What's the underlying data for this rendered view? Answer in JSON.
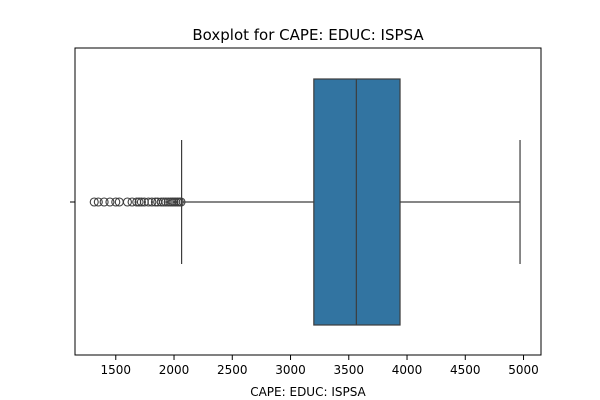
{
  "chart_data": {
    "type": "box",
    "title": "Boxplot for CAPE: EDUC: ISPSA",
    "xlabel": "CAPE: EDUC: ISPSA",
    "ylabel": "",
    "xlim": [
      1150,
      5150
    ],
    "xticks": [
      1500,
      2000,
      2500,
      3000,
      3500,
      4000,
      4500,
      5000
    ],
    "xtick_labels": [
      "1500",
      "2000",
      "2500",
      "3000",
      "3500",
      "4000",
      "4500",
      "5000"
    ],
    "box": {
      "whisker_low": 2065,
      "q1": 3200,
      "median": 3565,
      "q3": 3940,
      "whisker_high": 4970
    },
    "outliers": [
      1315,
      1350,
      1400,
      1450,
      1500,
      1530,
      1600,
      1640,
      1680,
      1700,
      1720,
      1745,
      1780,
      1810,
      1840,
      1860,
      1890,
      1910,
      1930,
      1950,
      1970,
      1985,
      2000,
      2015,
      2030,
      2045,
      2060
    ],
    "grid": false,
    "box_color": "#3274a1"
  }
}
